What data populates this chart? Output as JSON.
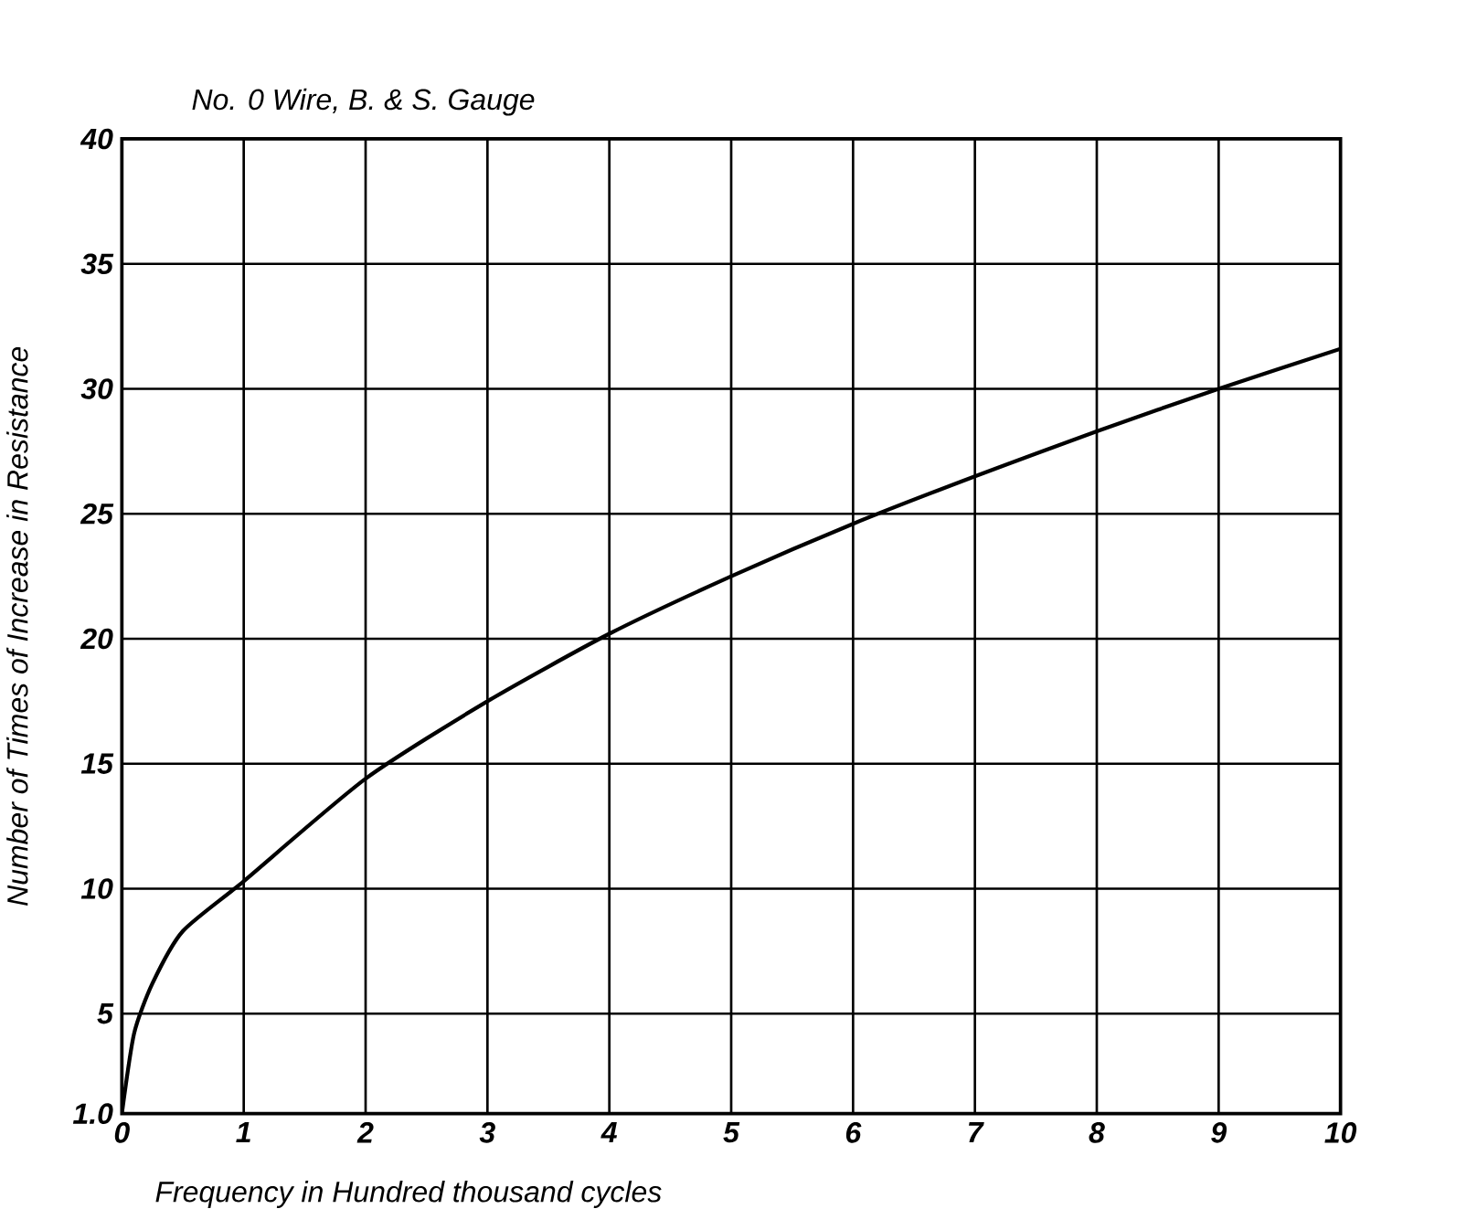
{
  "chart_data": {
    "type": "line",
    "title": "No. 0 Wire, B. & S. Gauge",
    "xlabel": "Frequency in Hundred thousand cycles",
    "ylabel": "Number of Times of Increase in Resistance",
    "x": [
      0,
      0.1,
      0.25,
      0.5,
      1,
      2,
      3,
      4,
      5,
      6,
      7,
      8,
      9,
      10
    ],
    "series": [
      {
        "color": "#000000",
        "values": [
          1.0,
          4.2,
          6.2,
          8.3,
          10.3,
          14.4,
          17.5,
          20.2,
          22.5,
          24.6,
          26.5,
          28.3,
          30.0,
          31.6
        ]
      }
    ],
    "xlim": [
      0,
      10
    ],
    "xticks": [
      0,
      1,
      2,
      3,
      4,
      5,
      6,
      7,
      8,
      9,
      10
    ],
    "ylim": [
      1,
      40
    ],
    "yticks": [
      {
        "value": 1,
        "label": "1.0"
      },
      5,
      10,
      15,
      20,
      25,
      30,
      35,
      40
    ],
    "grid": true,
    "marker": "none",
    "line_style": "solid"
  }
}
